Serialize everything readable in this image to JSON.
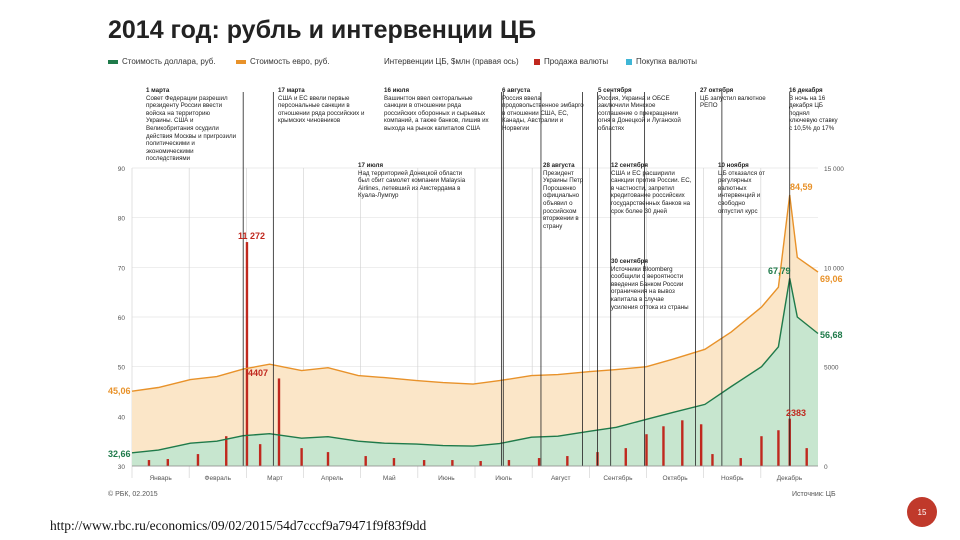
{
  "title": "2014 год: рубль и интервенции ЦБ",
  "legend": [
    {
      "label": "Стоимость доллара, руб.",
      "color": "#1f7a4a"
    },
    {
      "label": "Стоимость евро, руб.",
      "color": "#e8922a"
    },
    {
      "label": "Интервенции ЦБ, $млн (правая ось)",
      "color": null
    },
    {
      "label": "Продажа валюты",
      "color": "#c0281e"
    },
    {
      "label": "Покупка валюты",
      "color": "#3fb6d6"
    }
  ],
  "annotations": [
    {
      "date": "1 марта",
      "text": "Совет Федерации разрешил президенту России ввести войска на территорию Украины. США и Великобритания осудили действия Москвы и пригрозили политическими и экономическими последствиями"
    },
    {
      "date": "17 марта",
      "text": "США и ЕС ввели первые персональные санкции в отношении ряда российских и крымских чиновников"
    },
    {
      "date": "16 июля",
      "text": "Вашингтон ввел секторальные санкции в отношении ряда российских оборонных и сырьевых компаний, а также банков, лишив их выхода на рынок капиталов США"
    },
    {
      "date": "6 августа",
      "text": "Россия ввела продовольственное эмбарго в отношении США, ЕС, Канады, Австралии и Норвегии"
    },
    {
      "date": "5 сентября",
      "text": "Россия, Украина и ОБСЕ заключили Минское соглашение о прекращении огня в Донецкой и Луганской областях"
    },
    {
      "date": "27 октября",
      "text": "ЦБ запустил валютное РЕПО"
    },
    {
      "date": "16 декабря",
      "text": "В ночь на 16 декабря ЦБ поднял ключевую ставку с 10,5% до 17%"
    },
    {
      "date": "17 июля",
      "text": "Над территорией Донецкой области был сбит самолет компании Malaysia Airlines, летевший из Амстердама в Куала-Лумпур"
    },
    {
      "date": "28 августа",
      "text": "Президент Украины Петр Порошенко официально объявил о российском вторжении в страну"
    },
    {
      "date": "12 сентября",
      "text": "США и ЕС расширили санкции против России. ЕС, в частности, запретил кредитование российских государственных банков на срок более 30 дней"
    },
    {
      "date": "10 ноября",
      "text": "ЦБ отказался от регулярных валютных интервенций и свободно отпустил курс"
    },
    {
      "date": "30 сентября",
      "text": "Источники Bloomberg сообщили о вероятности введения Банком России ограничения на вывоз капитала в случае усиления оттока из страны"
    }
  ],
  "value_labels": {
    "intervention_mar": "11 272",
    "intervention_may": "4407",
    "intervention_dec": "2383",
    "euro_start": "45,06",
    "usd_start": "32,66",
    "euro_peak": "84,59",
    "usd_peak": "67,79",
    "euro_end": "69,06",
    "usd_end": "56,68"
  },
  "source": "© РБК, 02.2015",
  "source_right": "Источник: ЦБ",
  "url": "http://www.rbc.ru/economics/09/02/2015/54d7cccf9a79471f9f83f9dd",
  "page_number": "15",
  "chart_data": {
    "type": "area",
    "x_label": "",
    "months": [
      "Январь",
      "Февраль",
      "Март",
      "Апрель",
      "Май",
      "Июнь",
      "Июль",
      "Август",
      "Сентябрь",
      "Октябрь",
      "Ноябрь",
      "Декабрь"
    ],
    "left_axis": {
      "ticks": [
        30,
        40,
        50,
        60,
        70,
        80,
        90
      ],
      "range": [
        30,
        90
      ]
    },
    "right_axis": {
      "ticks": [
        "0",
        "5000",
        "10 000",
        "15 000"
      ],
      "range": [
        0,
        15000
      ]
    },
    "series": [
      {
        "name": "Стоимость евро, руб.",
        "color": "#e8922a",
        "x": [
          "2014-01-01",
          "2014-01-15",
          "2014-02-01",
          "2014-02-15",
          "2014-03-01",
          "2014-03-15",
          "2014-04-01",
          "2014-04-15",
          "2014-05-01",
          "2014-05-15",
          "2014-06-01",
          "2014-06-15",
          "2014-07-01",
          "2014-07-15",
          "2014-08-01",
          "2014-08-15",
          "2014-09-01",
          "2014-09-15",
          "2014-10-01",
          "2014-10-15",
          "2014-11-01",
          "2014-11-15",
          "2014-12-01",
          "2014-12-10",
          "2014-12-16",
          "2014-12-20",
          "2014-12-31"
        ],
        "values": [
          45.06,
          45.8,
          47.4,
          48.0,
          49.5,
          50.5,
          49.2,
          49.8,
          48.2,
          47.8,
          47.2,
          46.8,
          46.5,
          47.2,
          48.2,
          48.4,
          49.0,
          49.4,
          50.0,
          51.5,
          53.5,
          57.0,
          62.0,
          66.0,
          84.59,
          72.0,
          69.06
        ]
      },
      {
        "name": "Стоимость доллара, руб.",
        "color": "#1f7a4a",
        "x": [
          "2014-01-01",
          "2014-01-15",
          "2014-02-01",
          "2014-02-15",
          "2014-03-01",
          "2014-03-15",
          "2014-04-01",
          "2014-04-15",
          "2014-05-01",
          "2014-05-15",
          "2014-06-01",
          "2014-06-15",
          "2014-07-01",
          "2014-07-15",
          "2014-08-01",
          "2014-08-15",
          "2014-09-01",
          "2014-09-15",
          "2014-10-01",
          "2014-10-15",
          "2014-11-01",
          "2014-11-15",
          "2014-12-01",
          "2014-12-10",
          "2014-12-16",
          "2014-12-20",
          "2014-12-31"
        ],
        "values": [
          32.66,
          33.2,
          34.6,
          35.0,
          36.1,
          36.5,
          35.6,
          35.9,
          35.0,
          34.6,
          34.4,
          34.1,
          34.0,
          34.5,
          35.8,
          36.0,
          37.0,
          37.8,
          39.4,
          40.8,
          42.4,
          46.0,
          50.0,
          54.0,
          67.79,
          60.0,
          56.68
        ]
      }
    ],
    "bars": {
      "name": "Продажа валюты",
      "color": "#c0281e",
      "x": [
        "2014-01-10",
        "2014-01-20",
        "2014-02-05",
        "2014-02-20",
        "2014-03-03",
        "2014-03-10",
        "2014-03-20",
        "2014-04-01",
        "2014-04-15",
        "2014-05-05",
        "2014-05-20",
        "2014-06-05",
        "2014-06-20",
        "2014-07-05",
        "2014-07-20",
        "2014-08-05",
        "2014-08-20",
        "2014-09-05",
        "2014-09-20",
        "2014-10-01",
        "2014-10-10",
        "2014-10-20",
        "2014-10-30",
        "2014-11-05",
        "2014-11-20",
        "2014-12-01",
        "2014-12-10",
        "2014-12-16",
        "2014-12-25"
      ],
      "values": [
        300,
        350,
        600,
        1500,
        11272,
        1100,
        4407,
        900,
        700,
        500,
        400,
        300,
        300,
        250,
        300,
        400,
        500,
        700,
        900,
        1600,
        2000,
        2300,
        2100,
        600,
        400,
        1500,
        1800,
        2383,
        900
      ]
    }
  }
}
